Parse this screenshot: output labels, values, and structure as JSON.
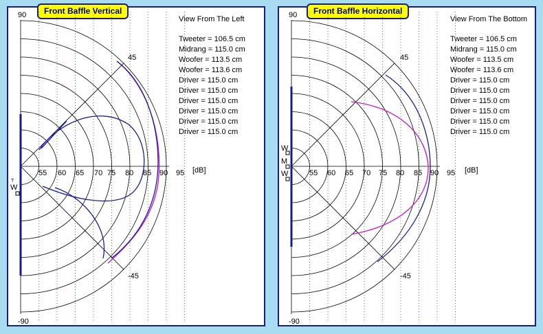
{
  "colors": {
    "background": "#a8dcf0",
    "panel_border": "#1a1a8c",
    "title_fill": "#ffff00",
    "title_text": "#000080",
    "baffle": "#1a1a8c",
    "curve_blue": "#1a1aa0",
    "curve_magenta": "#d010d0",
    "grid_dotted": "#22aa22"
  },
  "axis": {
    "ticks": [
      "55",
      "60",
      "65",
      "70",
      "75",
      "80",
      "85",
      "90",
      "95"
    ],
    "unit": "[dB]",
    "angle_top": "90",
    "angle_bottom": "-90",
    "angle_up45": "45",
    "angle_down45": "-45"
  },
  "panels": [
    {
      "title": "Front Baffle Vertical",
      "view": "View From The Left",
      "distances": [
        "Tweeter = 106.5 cm",
        "Midrang = 115.0 cm",
        "Woofer = 113.5 cm",
        "Woofer = 113.6 cm",
        "Driver = 115.0 cm",
        "Driver = 115.0 cm",
        "Driver = 115.0 cm",
        "Driver = 115.0 cm",
        "Driver = 115.0 cm",
        "Driver = 115.0 cm"
      ],
      "driver_labels": [
        "T",
        "W"
      ]
    },
    {
      "title": "Front Baffle Horizontal",
      "view": "View From The Bottom",
      "distances": [
        "Tweeter = 106.5 cm",
        "Midrang = 115.0 cm",
        "Woofer = 113.5 cm",
        "Woofer = 113.6 cm",
        "Driver = 115.0 cm",
        "Driver = 115.0 cm",
        "Driver = 115.0 cm",
        "Driver = 115.0 cm",
        "Driver = 115.0 cm",
        "Driver = 115.0 cm"
      ],
      "driver_labels": [
        "W",
        "M",
        "W"
      ]
    }
  ]
}
